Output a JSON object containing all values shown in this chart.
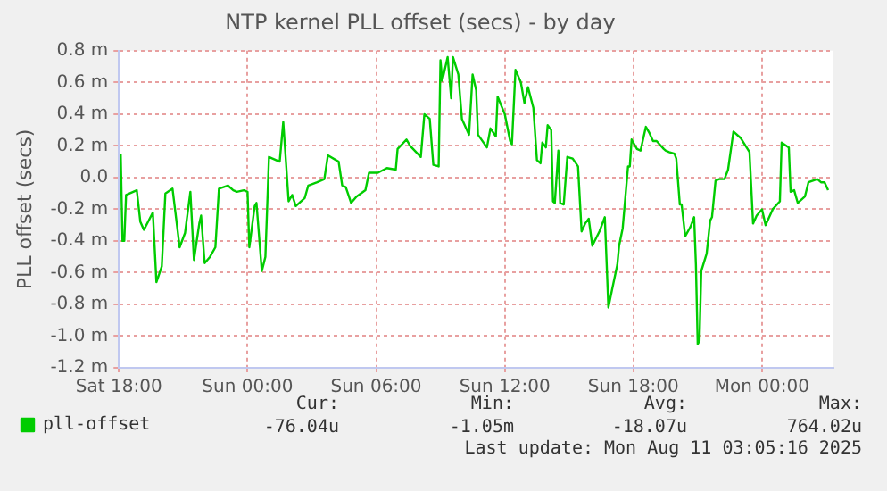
{
  "chart_data": {
    "type": "line",
    "title": "NTP kernel PLL offset (secs) - by day",
    "ylabel": "PLL offset (secs)",
    "x": [
      "2025-08-09T18:05",
      "2025-08-09T18:10",
      "2025-08-09T18:15",
      "2025-08-09T18:20",
      "2025-08-09T18:50",
      "2025-08-09T19:00",
      "2025-08-09T19:10",
      "2025-08-09T19:35",
      "2025-08-09T19:45",
      "2025-08-09T20:00",
      "2025-08-09T20:10",
      "2025-08-09T20:30",
      "2025-08-09T20:50",
      "2025-08-09T21:05",
      "2025-08-09T21:20",
      "2025-08-09T21:30",
      "2025-08-09T21:45",
      "2025-08-09T21:50",
      "2025-08-09T22:00",
      "2025-08-09T22:15",
      "2025-08-09T22:30",
      "2025-08-09T22:40",
      "2025-08-09T23:05",
      "2025-08-09T23:20",
      "2025-08-09T23:30",
      "2025-08-09T23:50",
      "2025-08-10T00:00",
      "2025-08-10T00:05",
      "2025-08-10T00:20",
      "2025-08-10T00:25",
      "2025-08-10T00:40",
      "2025-08-10T00:50",
      "2025-08-10T01:00",
      "2025-08-10T01:30",
      "2025-08-10T01:40",
      "2025-08-10T01:55",
      "2025-08-10T02:05",
      "2025-08-10T02:15",
      "2025-08-10T02:40",
      "2025-08-10T02:50",
      "2025-08-10T03:15",
      "2025-08-10T03:35",
      "2025-08-10T03:45",
      "2025-08-10T04:15",
      "2025-08-10T04:25",
      "2025-08-10T04:35",
      "2025-08-10T04:50",
      "2025-08-10T05:05",
      "2025-08-10T05:30",
      "2025-08-10T05:40",
      "2025-08-10T06:05",
      "2025-08-10T06:30",
      "2025-08-10T06:55",
      "2025-08-10T07:00",
      "2025-08-10T07:25",
      "2025-08-10T07:35",
      "2025-08-10T08:05",
      "2025-08-10T08:15",
      "2025-08-10T08:30",
      "2025-08-10T08:40",
      "2025-08-10T08:55",
      "2025-08-10T09:00",
      "2025-08-10T09:05",
      "2025-08-10T09:20",
      "2025-08-10T09:30",
      "2025-08-10T09:35",
      "2025-08-10T09:50",
      "2025-08-10T10:00",
      "2025-08-10T10:20",
      "2025-08-10T10:30",
      "2025-08-10T10:40",
      "2025-08-10T10:45",
      "2025-08-10T11:10",
      "2025-08-10T11:20",
      "2025-08-10T11:35",
      "2025-08-10T11:40",
      "2025-08-10T12:00",
      "2025-08-10T12:15",
      "2025-08-10T12:20",
      "2025-08-10T12:30",
      "2025-08-10T12:45",
      "2025-08-10T12:55",
      "2025-08-10T13:05",
      "2025-08-10T13:20",
      "2025-08-10T13:30",
      "2025-08-10T13:40",
      "2025-08-10T13:45",
      "2025-08-10T13:55",
      "2025-08-10T14:00",
      "2025-08-10T14:10",
      "2025-08-10T14:15",
      "2025-08-10T14:20",
      "2025-08-10T14:30",
      "2025-08-10T14:35",
      "2025-08-10T14:45",
      "2025-08-10T14:55",
      "2025-08-10T15:10",
      "2025-08-10T15:25",
      "2025-08-10T15:35",
      "2025-08-10T15:45",
      "2025-08-10T15:55",
      "2025-08-10T16:05",
      "2025-08-10T16:25",
      "2025-08-10T16:40",
      "2025-08-10T16:50",
      "2025-08-10T17:00",
      "2025-08-10T17:15",
      "2025-08-10T17:20",
      "2025-08-10T17:30",
      "2025-08-10T17:45",
      "2025-08-10T17:50",
      "2025-08-10T17:55",
      "2025-08-10T18:10",
      "2025-08-10T18:20",
      "2025-08-10T18:35",
      "2025-08-10T18:45",
      "2025-08-10T18:55",
      "2025-08-10T19:05",
      "2025-08-10T19:25",
      "2025-08-10T19:30",
      "2025-08-10T19:40",
      "2025-08-10T19:55",
      "2025-08-10T20:00",
      "2025-08-10T20:10",
      "2025-08-10T20:15",
      "2025-08-10T20:25",
      "2025-08-10T20:40",
      "2025-08-10T20:50",
      "2025-08-10T20:55",
      "2025-08-10T21:00",
      "2025-08-10T21:05",
      "2025-08-10T21:10",
      "2025-08-10T21:25",
      "2025-08-10T21:35",
      "2025-08-10T21:40",
      "2025-08-10T21:50",
      "2025-08-10T22:00",
      "2025-08-10T22:15",
      "2025-08-10T22:25",
      "2025-08-10T22:40",
      "2025-08-10T23:00",
      "2025-08-10T23:25",
      "2025-08-10T23:35",
      "2025-08-10T23:45",
      "2025-08-11T00:00",
      "2025-08-11T00:10",
      "2025-08-11T00:30",
      "2025-08-11T00:50",
      "2025-08-11T00:55",
      "2025-08-11T01:15",
      "2025-08-11T01:20",
      "2025-08-11T01:30",
      "2025-08-11T01:40",
      "2025-08-11T02:00",
      "2025-08-11T02:10",
      "2025-08-11T02:35",
      "2025-08-11T02:45",
      "2025-08-11T02:55",
      "2025-08-11T03:05"
    ],
    "series": [
      {
        "name": "pll-offset",
        "color": "#00cc00",
        "values": [
          0.15,
          -0.4,
          -0.4,
          -0.11,
          -0.08,
          -0.28,
          -0.33,
          -0.22,
          -0.66,
          -0.56,
          -0.1,
          -0.07,
          -0.44,
          -0.35,
          -0.09,
          -0.52,
          -0.29,
          -0.24,
          -0.54,
          -0.5,
          -0.44,
          -0.07,
          -0.05,
          -0.08,
          -0.09,
          -0.08,
          -0.09,
          -0.44,
          -0.18,
          -0.16,
          -0.59,
          -0.5,
          0.13,
          0.1,
          0.35,
          -0.15,
          -0.11,
          -0.18,
          -0.13,
          -0.05,
          -0.03,
          -0.01,
          0.14,
          0.1,
          -0.05,
          -0.06,
          -0.16,
          -0.12,
          -0.08,
          0.03,
          0.03,
          0.06,
          0.05,
          0.18,
          0.24,
          0.2,
          0.13,
          0.4,
          0.37,
          0.08,
          0.07,
          0.74,
          0.61,
          0.76,
          0.5,
          0.76,
          0.65,
          0.37,
          0.27,
          0.65,
          0.55,
          0.27,
          0.19,
          0.31,
          0.26,
          0.51,
          0.4,
          0.23,
          0.21,
          0.68,
          0.6,
          0.47,
          0.57,
          0.44,
          0.11,
          0.09,
          0.22,
          0.19,
          0.33,
          0.3,
          -0.15,
          -0.16,
          0.17,
          -0.16,
          -0.17,
          0.13,
          0.12,
          0.07,
          -0.34,
          -0.29,
          -0.26,
          -0.43,
          -0.34,
          -0.25,
          -0.82,
          -0.71,
          -0.55,
          -0.43,
          -0.32,
          0.07,
          0.07,
          0.24,
          0.18,
          0.17,
          0.32,
          0.28,
          0.23,
          0.23,
          0.18,
          0.17,
          0.16,
          0.15,
          0.12,
          -0.17,
          -0.17,
          -0.37,
          -0.31,
          -0.25,
          -0.55,
          -1.05,
          -1.03,
          -0.59,
          -0.48,
          -0.27,
          -0.25,
          -0.02,
          -0.01,
          -0.01,
          0.05,
          0.29,
          0.25,
          0.16,
          -0.29,
          -0.24,
          -0.2,
          -0.3,
          -0.2,
          -0.15,
          0.22,
          0.19,
          -0.09,
          -0.08,
          -0.16,
          -0.12,
          -0.03,
          -0.01,
          -0.03,
          -0.03,
          -0.08
        ]
      }
    ],
    "xlim": [
      "2025-08-09T18:00",
      "2025-08-11T03:20"
    ],
    "xticks": [
      {
        "value": "2025-08-09T18:00",
        "label": "Sat 18:00"
      },
      {
        "value": "2025-08-10T00:00",
        "label": "Sun 00:00"
      },
      {
        "value": "2025-08-10T06:00",
        "label": "Sun 06:00"
      },
      {
        "value": "2025-08-10T12:00",
        "label": "Sun 12:00"
      },
      {
        "value": "2025-08-10T18:00",
        "label": "Sun 18:00"
      },
      {
        "value": "2025-08-11T00:00",
        "label": "Mon 00:00"
      }
    ],
    "ylim": [
      -1.2,
      0.8
    ],
    "yticks": [
      {
        "value": -1.2,
        "label": "-1.2 m"
      },
      {
        "value": -1.0,
        "label": "-1.0 m"
      },
      {
        "value": -0.8,
        "label": "-0.8 m"
      },
      {
        "value": -0.6,
        "label": "-0.6 m"
      },
      {
        "value": -0.4,
        "label": "-0.4 m"
      },
      {
        "value": -0.2,
        "label": "-0.2 m"
      },
      {
        "value": 0,
        "label": "0.0"
      },
      {
        "value": 0.2,
        "label": "0.2 m"
      },
      {
        "value": 0.4,
        "label": "0.4 m"
      },
      {
        "value": 0.6,
        "label": "0.6 m"
      },
      {
        "value": 0.8,
        "label": "0.8 m"
      }
    ],
    "grid": true,
    "legend": "bottom left",
    "marker": "none",
    "line_style": "solid",
    "annotations": [
      "Cur:",
      "Min:",
      "Avg:",
      "Max:",
      "-76.04u",
      "-1.05m",
      "-18.07u",
      "764.02u",
      "Last update: Mon Aug 11 03:05:16 2025"
    ]
  }
}
